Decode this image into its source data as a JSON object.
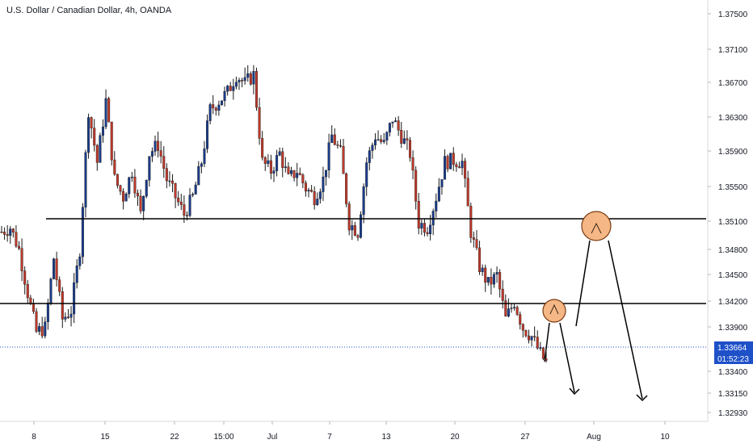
{
  "header": {
    "title": "U.S. Dollar / Canadian Dollar, 4h, OANDA"
  },
  "price_axis": {
    "ticks": [
      "1.37500",
      "1.37100",
      "1.36700",
      "1.36300",
      "1.35900",
      "1.35500",
      "1.35100",
      "1.34800",
      "1.34500",
      "1.34200",
      "1.33900",
      "1.33400",
      "1.33150",
      "1.32930"
    ],
    "current_price": "1.33664",
    "countdown": "01:52:23"
  },
  "time_axis": {
    "ticks": [
      "8",
      "15",
      "22",
      "15:00",
      "Jul",
      "7",
      "13",
      "20",
      "27",
      "Aug",
      "10"
    ]
  },
  "colors": {
    "up": "#1a3c8c",
    "down": "#c0392b",
    "price_line": "#1e50c8",
    "level_line": "#000000",
    "marker_fill": "#f5b785",
    "marker_stroke": "#7a3b10",
    "axis_text": "#131722",
    "grid_border": "#d9d9d9"
  },
  "chart_data": {
    "type": "candlestick",
    "title": "U.S. Dollar / Canadian Dollar, 4h, OANDA",
    "xlabel": "",
    "ylabel": "",
    "ylim": [
      1.327,
      1.377
    ],
    "current_price": 1.33664,
    "horizontal_levels": [
      1.3512,
      1.3417
    ],
    "x_ticks": [
      "8",
      "15",
      "22",
      "15:00",
      "Jul",
      "7",
      "13",
      "20",
      "27",
      "Aug",
      "10"
    ],
    "y_ticks": [
      1.375,
      1.371,
      1.367,
      1.363,
      1.359,
      1.355,
      1.351,
      1.348,
      1.345,
      1.342,
      1.339,
      1.334,
      1.3315,
      1.3293
    ],
    "price_path": [
      [
        0,
        1.35
      ],
      [
        3,
        1.3505
      ],
      [
        6,
        1.348
      ],
      [
        9,
        1.343
      ],
      [
        12,
        1.3385
      ],
      [
        15,
        1.339
      ],
      [
        18,
        1.347
      ],
      [
        21,
        1.34
      ],
      [
        24,
        1.341
      ],
      [
        27,
        1.348
      ],
      [
        30,
        1.364
      ],
      [
        33,
        1.358
      ],
      [
        36,
        1.365
      ],
      [
        39,
        1.356
      ],
      [
        42,
        1.354
      ],
      [
        45,
        1.357
      ],
      [
        48,
        1.352
      ],
      [
        51,
        1.359
      ],
      [
        54,
        1.36
      ],
      [
        57,
        1.356
      ],
      [
        60,
        1.354
      ],
      [
        63,
        1.352
      ],
      [
        66,
        1.354
      ],
      [
        69,
        1.358
      ],
      [
        72,
        1.364
      ],
      [
        75,
        1.365
      ],
      [
        78,
        1.366
      ],
      [
        81,
        1.368
      ],
      [
        84,
        1.367
      ],
      [
        87,
        1.368
      ],
      [
        90,
        1.358
      ],
      [
        93,
        1.357
      ],
      [
        96,
        1.359
      ],
      [
        99,
        1.356
      ],
      [
        102,
        1.357
      ],
      [
        105,
        1.355
      ],
      [
        108,
        1.354
      ],
      [
        111,
        1.356
      ],
      [
        114,
        1.361
      ],
      [
        117,
        1.359
      ],
      [
        120,
        1.351
      ],
      [
        123,
        1.35
      ],
      [
        126,
        1.358
      ],
      [
        129,
        1.361
      ],
      [
        132,
        1.36
      ],
      [
        135,
        1.363
      ],
      [
        138,
        1.361
      ],
      [
        141,
        1.359
      ],
      [
        144,
        1.351
      ],
      [
        147,
        1.3505
      ],
      [
        150,
        1.354
      ],
      [
        153,
        1.358
      ],
      [
        156,
        1.3582
      ],
      [
        159,
        1.358
      ],
      [
        162,
        1.35
      ],
      [
        165,
        1.346
      ],
      [
        168,
        1.344
      ],
      [
        171,
        1.345
      ],
      [
        174,
        1.34
      ],
      [
        177,
        1.342
      ],
      [
        180,
        1.339
      ],
      [
        183,
        1.338
      ],
      [
        186,
        1.336
      ],
      [
        188,
        1.335
      ]
    ],
    "annotations": [
      {
        "type": "circle-marker",
        "price": 1.3412
      },
      {
        "type": "circle-marker",
        "price": 1.3507
      },
      {
        "type": "projection-arrow"
      }
    ]
  }
}
